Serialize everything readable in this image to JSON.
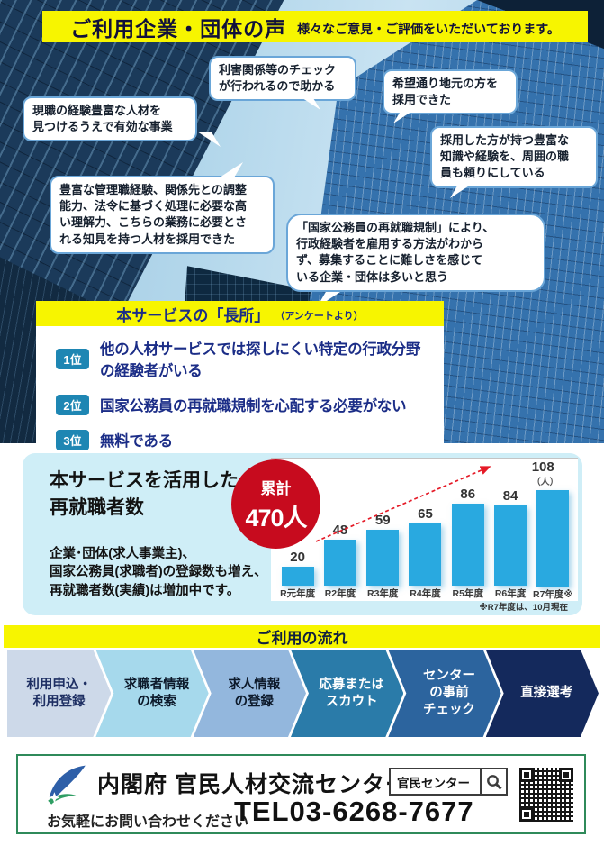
{
  "header": {
    "title": "ご利用企業・団体の声",
    "subtitle": "様々なご意見・ご評価をいただいております。"
  },
  "testimonials": [
    "現職の経験豊富な人材を\n見つけるうえで有効な事業",
    "利害関係等のチェック\nが行われるので助かる",
    "希望通り地元の方を\n採用できた",
    "採用した方が持つ豊富な\n知識や経験を、周囲の職\n員も頼りにしている",
    "豊富な管理職経験、関係先との調整\n能力、法令に基づく処理に必要な高\nい理解力、こちらの業務に必要とさ\nれる知見を持つ人材を採用できた",
    "「国家公務員の再就職規制」により、\n行政経験者を雇用する方法がわから\nず、募集することに難しさを感じて\nいる企業・団体は多いと思う"
  ],
  "advantages": {
    "title": "本サービスの「長所」",
    "title_note": "（アンケートより）",
    "items": [
      {
        "rank": "1位",
        "text": "他の人材サービスでは探しにくい特定の行政分野の経験者がいる"
      },
      {
        "rank": "2位",
        "text": "国家公務員の再就職規制を心配する必要がない"
      },
      {
        "rank": "3位",
        "text": "無料である"
      }
    ]
  },
  "stats": {
    "title": "本サービスを活用した\n再就職者数",
    "cumulative_label": "累計",
    "cumulative_value": "470人",
    "description": "企業･団体(求人事業主)、\n国家公務員(求職者)の登録数も増え、\n再就職者数(実績)は増加中です。",
    "note": "※R7年度は、10月現在",
    "unit": "（人）"
  },
  "chart_data": {
    "type": "bar",
    "title": "本サービスを活用した再就職者数",
    "categories": [
      "R元年度",
      "R2年度",
      "R3年度",
      "R4年度",
      "R5年度",
      "R6年度",
      "R7年度※"
    ],
    "values": [
      20,
      48,
      59,
      65,
      86,
      84,
      108
    ],
    "ylabel": "人",
    "ylim": [
      0,
      115
    ],
    "bar_color": "#29a9e0",
    "annotation": "累計470人",
    "legend": "none",
    "grid": "off"
  },
  "flow": {
    "title": "ご利用の流れ",
    "steps": [
      {
        "label": "利用申込・\n利用登録",
        "bg": "#cdd9e9",
        "color": "#1e2f63"
      },
      {
        "label": "求職者情報\nの検索",
        "bg": "#a6d9ec",
        "color": "#0d1a2b"
      },
      {
        "label": "求人情報\nの登録",
        "bg": "#93b7dd",
        "color": "#0d1a2b"
      },
      {
        "label": "応募または\nスカウト",
        "bg": "#2a7ba9",
        "color": "#ffffff"
      },
      {
        "label": "センター\nの事前\nチェック",
        "bg": "#2c649e",
        "color": "#ffffff"
      },
      {
        "label": "直接選考",
        "bg": "#14295c",
        "color": "#ffffff"
      }
    ]
  },
  "footer": {
    "org": "内閣府 官民人材交流センター",
    "search_value": "官民センター",
    "contact_label": "お気軽にお問い合わせください",
    "tel": "TEL03-6268-7677"
  },
  "colors": {
    "accent_yellow": "#f7f500",
    "navy_text": "#1b2d87",
    "rank_badge": "#1e86b3",
    "panel_blue": "#cfeef7",
    "bar_blue": "#29a9e0",
    "badge_red": "#c70b1e",
    "footer_green": "#2f8a5a"
  }
}
